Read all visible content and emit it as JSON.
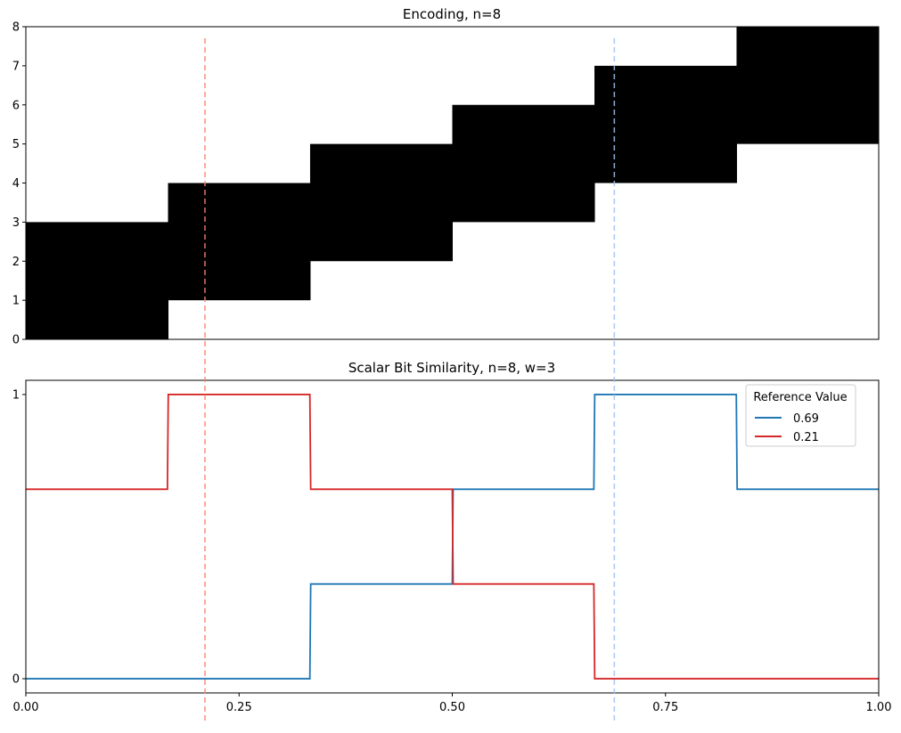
{
  "chart_data": [
    {
      "type": "heatmap",
      "title": "Encoding, n=8",
      "xlim": [
        0,
        1
      ],
      "ylim": [
        0,
        8
      ],
      "y_ticks": [
        "0",
        "1",
        "2",
        "3",
        "4",
        "5",
        "6",
        "7",
        "8"
      ],
      "x_ticks_visible": false,
      "encoding_rows": [
        {
          "x_start": 0.0,
          "x_end": 0.1667,
          "y_start": 0,
          "y_end": 3
        },
        {
          "x_start": 0.1667,
          "x_end": 0.3333,
          "y_start": 1,
          "y_end": 4
        },
        {
          "x_start": 0.3333,
          "x_end": 0.5,
          "y_start": 2,
          "y_end": 5
        },
        {
          "x_start": 0.5,
          "x_end": 0.6667,
          "y_start": 3,
          "y_end": 6
        },
        {
          "x_start": 0.6667,
          "x_end": 0.8333,
          "y_start": 4,
          "y_end": 7
        },
        {
          "x_start": 0.8333,
          "x_end": 1.0,
          "y_start": 5,
          "y_end": 8
        }
      ],
      "fill_color": "#000000",
      "grid": false
    },
    {
      "type": "line",
      "title": "Scalar Bit Similarity, n=8, w=3",
      "xlim": [
        0,
        1
      ],
      "ylim": [
        -0.05,
        1.05
      ],
      "x_ticks": [
        "0.00",
        "0.25",
        "0.50",
        "0.75",
        "1.00"
      ],
      "x_tick_values": [
        0,
        0.25,
        0.5,
        0.75,
        1.0
      ],
      "y_ticks": [
        "0",
        "1"
      ],
      "y_tick_values": [
        0,
        1
      ],
      "legend_title": "Reference Value",
      "legend_position": "top-right",
      "grid": false,
      "series": [
        {
          "name": "0.69",
          "color": "#1f77b4",
          "points": [
            [
              0,
              0
            ],
            [
              0.333,
              0
            ],
            [
              0.334,
              0.3333
            ],
            [
              0.5,
              0.3333
            ],
            [
              0.501,
              0.6667
            ],
            [
              0.666,
              0.6667
            ],
            [
              0.667,
              1
            ],
            [
              0.833,
              1
            ],
            [
              0.834,
              0.6667
            ],
            [
              1.0,
              0.6667
            ]
          ]
        },
        {
          "name": "0.21",
          "color": "#d62728",
          "points": [
            [
              0,
              0.6667
            ],
            [
              0.166,
              0.6667
            ],
            [
              0.167,
              1
            ],
            [
              0.333,
              1
            ],
            [
              0.334,
              0.6667
            ],
            [
              0.5,
              0.6667
            ],
            [
              0.501,
              0.3333
            ],
            [
              0.666,
              0.3333
            ],
            [
              0.667,
              0
            ],
            [
              1.0,
              0
            ]
          ]
        }
      ]
    }
  ],
  "reference_lines": [
    {
      "x": 0.21,
      "color": "#fa8072"
    },
    {
      "x": 0.69,
      "color": "#9dc3f0"
    }
  ]
}
